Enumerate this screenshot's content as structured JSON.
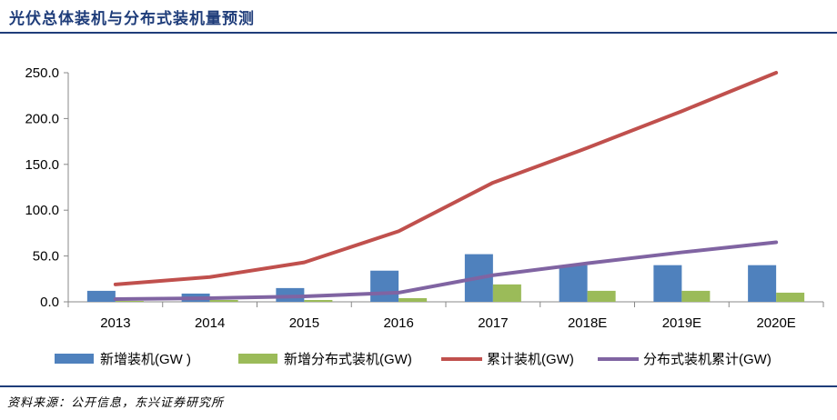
{
  "header": {
    "title": "光伏总体装机与分布式装机量预测"
  },
  "footer": {
    "source": "资料来源：公开信息，东兴证券研究所"
  },
  "chart_data": {
    "type": "bar",
    "categories": [
      "2013",
      "2014",
      "2015",
      "2016",
      "2017",
      "2018E",
      "2019E",
      "2020E"
    ],
    "ylim": [
      0,
      250
    ],
    "yticks": [
      "0.0",
      "50.0",
      "100.0",
      "150.0",
      "200.0",
      "250.0"
    ],
    "grid": false,
    "legend_position": "bottom",
    "bar_series": [
      {
        "name": "新增装机(GW )",
        "color": "#4f81bd",
        "values": [
          12,
          9,
          15,
          34,
          52,
          40,
          40,
          40
        ]
      },
      {
        "name": "新增分布式装机(GW)",
        "color": "#9bbb59",
        "values": [
          1,
          2,
          2,
          4,
          19,
          12,
          12,
          10
        ]
      }
    ],
    "line_series": [
      {
        "name": "累计装机(GW)",
        "color": "#c0504d",
        "values": [
          19,
          27,
          43,
          77,
          130,
          168,
          208,
          250
        ]
      },
      {
        "name": "分布式装机累计(GW)",
        "color": "#8064a2",
        "values": [
          3,
          4,
          6,
          10,
          29,
          42,
          54,
          65
        ]
      }
    ]
  }
}
